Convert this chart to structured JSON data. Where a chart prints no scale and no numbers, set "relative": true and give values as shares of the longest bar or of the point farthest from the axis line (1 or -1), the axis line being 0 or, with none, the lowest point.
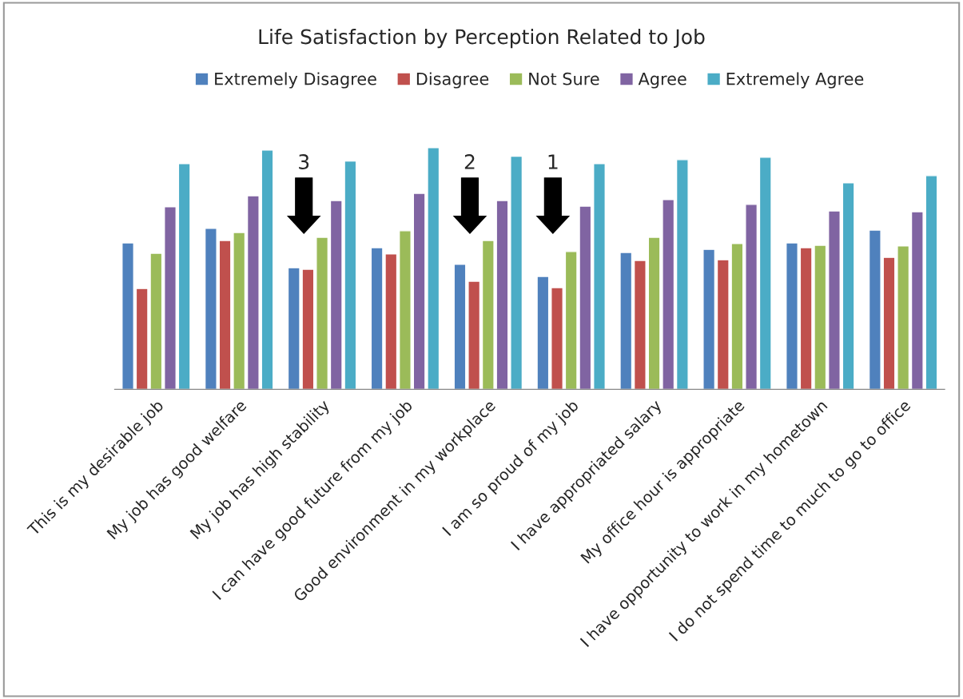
{
  "chart_data": {
    "type": "bar",
    "title": "Life Satisfaction by Perception Related to Job",
    "relative": true,
    "categories": [
      "This is my desirable job",
      "My job has good welfare",
      "My job has high stability",
      "I can have good future from my job",
      "Good environment in my workplace",
      "I am so proud of my job",
      "I have appropriated salary",
      "My office hour is appropriate",
      "I have opportunity to work in my hometown",
      "I do not spend time to much to go to office"
    ],
    "series": [
      {
        "name": "Extremely Disagree",
        "color": "#4f81bd",
        "values": [
          0.606,
          0.666,
          0.503,
          0.586,
          0.517,
          0.467,
          0.566,
          0.579,
          0.606,
          0.659
        ]
      },
      {
        "name": "Disagree",
        "color": "#c0504d",
        "values": [
          0.417,
          0.616,
          0.497,
          0.56,
          0.447,
          0.421,
          0.533,
          0.536,
          0.586,
          0.546
        ]
      },
      {
        "name": "Not Sure",
        "color": "#9bbb59",
        "values": [
          0.563,
          0.649,
          0.629,
          0.656,
          0.616,
          0.57,
          0.629,
          0.603,
          0.596,
          0.593
        ]
      },
      {
        "name": "Agree",
        "color": "#8064a2",
        "values": [
          0.755,
          0.801,
          0.781,
          0.811,
          0.781,
          0.758,
          0.785,
          0.765,
          0.738,
          0.735
        ]
      },
      {
        "name": "Extremely Agree",
        "color": "#4bacc6",
        "values": [
          0.934,
          0.99,
          0.944,
          1.0,
          0.964,
          0.934,
          0.95,
          0.96,
          0.854,
          0.884
        ]
      }
    ],
    "annotations": [
      "3",
      "2",
      "1"
    ],
    "legend": "top",
    "grid": false
  }
}
